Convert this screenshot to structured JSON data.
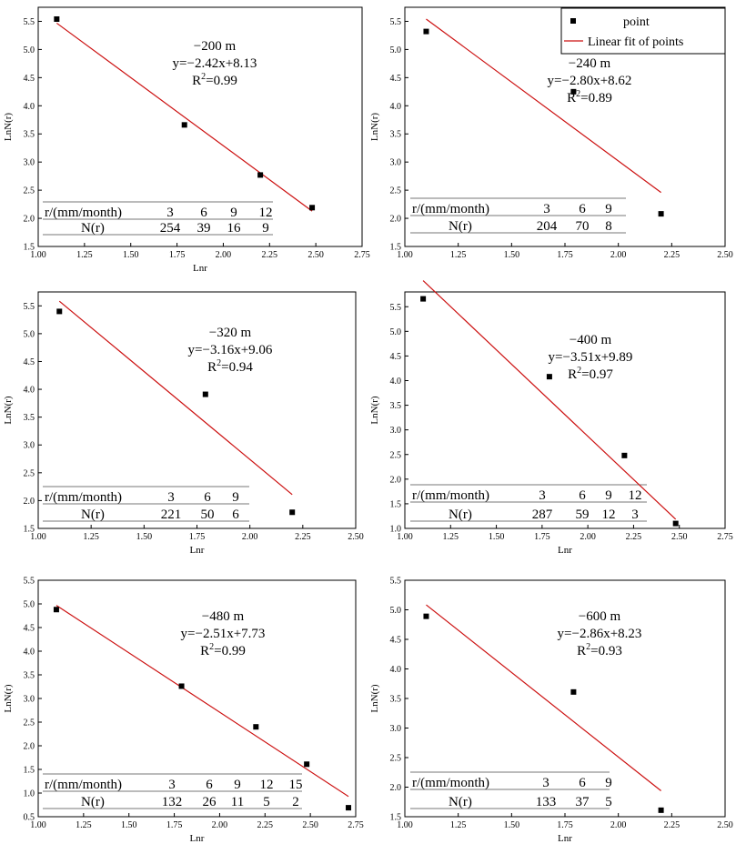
{
  "chart_data": [
    {
      "type": "scatter",
      "annotation": {
        "depth": "−200 m",
        "equation": "y=−2.42x+8.13",
        "r2_prefix": "R",
        "r2_sup": "2",
        "r2_value": "=0.99"
      },
      "xlabel": "Lnr",
      "ylabel": "LnN(r)",
      "xlim": [
        1.0,
        2.75
      ],
      "ylim": [
        1.5,
        5.75
      ],
      "xticks": [
        "1.00",
        "1.25",
        "1.50",
        "1.75",
        "2.00",
        "2.25",
        "2.50",
        "2.75"
      ],
      "yticks": [
        "1.5",
        "2.0",
        "2.5",
        "3.0",
        "3.5",
        "4.0",
        "4.5",
        "5.0",
        "5.5"
      ],
      "points": [
        [
          1.1,
          5.54
        ],
        [
          1.79,
          3.66
        ],
        [
          2.2,
          2.77
        ],
        [
          2.48,
          2.19
        ]
      ],
      "fit": {
        "slope": -2.42,
        "intercept": 8.13,
        "x": [
          1.1,
          2.48
        ]
      },
      "table": {
        "r_label": "r/(mm/month)",
        "r_values": [
          "3",
          "6",
          "9",
          "12"
        ],
        "n_label": "N(r)",
        "n_values": [
          "254",
          "39",
          "16",
          "9"
        ]
      }
    },
    {
      "type": "scatter",
      "annotation": {
        "depth": "−240 m",
        "equation": "y=−2.80x+8.62",
        "r2_prefix": "R",
        "r2_sup": "2",
        "r2_value": "=0.89"
      },
      "xlabel": "",
      "ylabel": "LnN(r)",
      "xlim": [
        1.0,
        2.5
      ],
      "ylim": [
        1.5,
        5.75
      ],
      "xticks": [
        "1.00",
        "1.25",
        "1.50",
        "1.75",
        "2.00",
        "2.25",
        "2.50"
      ],
      "yticks": [
        "1.5",
        "2.0",
        "2.5",
        "3.0",
        "3.5",
        "4.0",
        "4.5",
        "5.0",
        "5.5"
      ],
      "points": [
        [
          1.1,
          5.32
        ],
        [
          1.79,
          4.25
        ],
        [
          2.2,
          2.08
        ]
      ],
      "fit": {
        "slope": -2.8,
        "intercept": 8.62,
        "x": [
          1.1,
          2.2
        ]
      },
      "legend": {
        "placement": "top-right",
        "point_label": "point",
        "line_label": "Linear fit of points"
      },
      "table": {
        "r_label": "r/(mm/month)",
        "r_values": [
          "3",
          "6",
          "9"
        ],
        "n_label": "N(r)",
        "n_values": [
          "204",
          "70",
          "8"
        ]
      }
    },
    {
      "type": "scatter",
      "annotation": {
        "depth": "−320 m",
        "equation": "y=−3.16x+9.06",
        "r2_prefix": "R",
        "r2_sup": "2",
        "r2_value": "=0.94"
      },
      "xlabel": "Lnr",
      "ylabel": "LnN(r)",
      "xlim": [
        1.0,
        2.5
      ],
      "ylim": [
        1.5,
        5.75
      ],
      "xticks": [
        "1.00",
        "1.25",
        "1.50",
        "1.75",
        "2.00",
        "2.25",
        "2.50"
      ],
      "yticks": [
        "1.5",
        "2.0",
        "2.5",
        "3.0",
        "3.5",
        "4.0",
        "4.5",
        "5.0",
        "5.5"
      ],
      "points": [
        [
          1.1,
          5.4
        ],
        [
          1.79,
          3.91
        ],
        [
          2.2,
          1.79
        ]
      ],
      "fit": {
        "slope": -3.16,
        "intercept": 9.06,
        "x": [
          1.1,
          2.2
        ]
      },
      "table": {
        "r_label": "r/(mm/month)",
        "r_values": [
          "3",
          "6",
          "9"
        ],
        "n_label": "N(r)",
        "n_values": [
          "221",
          "50",
          "6"
        ]
      }
    },
    {
      "type": "scatter",
      "annotation": {
        "depth": "−400 m",
        "equation": "y=−3.51x+9.89",
        "r2_prefix": "R",
        "r2_sup": "2",
        "r2_value": "=0.97"
      },
      "xlabel": "Lnr",
      "ylabel": "LnN(r)",
      "xlim": [
        1.0,
        2.75
      ],
      "ylim": [
        1.0,
        5.8
      ],
      "xticks": [
        "1.00",
        "1.25",
        "1.50",
        "1.75",
        "2.00",
        "2.25",
        "2.50",
        "2.75"
      ],
      "yticks": [
        "1.0",
        "1.5",
        "2.0",
        "2.5",
        "3.0",
        "3.5",
        "4.0",
        "4.5",
        "5.0",
        "5.5"
      ],
      "points": [
        [
          1.1,
          5.66
        ],
        [
          1.79,
          4.08
        ],
        [
          2.2,
          2.48
        ],
        [
          2.48,
          1.1
        ]
      ],
      "fit": {
        "slope": -3.51,
        "intercept": 9.89,
        "x": [
          1.1,
          2.48
        ]
      },
      "table": {
        "r_label": "r/(mm/month)",
        "r_values": [
          "3",
          "6",
          "9",
          "12"
        ],
        "n_label": "N(r)",
        "n_values": [
          "287",
          "59",
          "12",
          "3"
        ]
      }
    },
    {
      "type": "scatter",
      "annotation": {
        "depth": "−480 m",
        "equation": "y=−2.51x+7.73",
        "r2_prefix": "R",
        "r2_sup": "2",
        "r2_value": "=0.99"
      },
      "xlabel": "Lnr",
      "ylabel": "LnN(r)",
      "xlim": [
        1.0,
        2.75
      ],
      "ylim": [
        0.5,
        5.5
      ],
      "xticks": [
        "1.00",
        "1.25",
        "1.50",
        "1.75",
        "2.00",
        "2.25",
        "2.50",
        "2.75"
      ],
      "yticks": [
        "0.5",
        "1.0",
        "1.5",
        "2.0",
        "2.5",
        "3.0",
        "3.5",
        "4.0",
        "4.5",
        "5.0",
        "5.5"
      ],
      "points": [
        [
          1.1,
          4.88
        ],
        [
          1.79,
          3.26
        ],
        [
          2.2,
          2.4
        ],
        [
          2.48,
          1.61
        ],
        [
          2.71,
          0.69
        ]
      ],
      "fit": {
        "slope": -2.51,
        "intercept": 7.73,
        "x": [
          1.1,
          2.71
        ]
      },
      "table": {
        "r_label": "r/(mm/month)",
        "r_values": [
          "3",
          "6",
          "9",
          "12",
          "15"
        ],
        "n_label": "N(r)",
        "n_values": [
          "132",
          "26",
          "11",
          "5",
          "2"
        ]
      }
    },
    {
      "type": "scatter",
      "annotation": {
        "depth": "−600 m",
        "equation": "y=−2.86x+8.23",
        "r2_prefix": "R",
        "r2_sup": "2",
        "r2_value": "=0.93"
      },
      "xlabel": "Lnr",
      "ylabel": "LnN(r)",
      "xlim": [
        1.0,
        2.5
      ],
      "ylim": [
        1.5,
        5.5
      ],
      "xticks": [
        "1.00",
        "1.25",
        "1.50",
        "1.75",
        "2.00",
        "2.25",
        "2.50"
      ],
      "yticks": [
        "1.5",
        "2.0",
        "2.5",
        "3.0",
        "3.5",
        "4.0",
        "4.5",
        "5.0",
        "5.5"
      ],
      "points": [
        [
          1.1,
          4.89
        ],
        [
          1.79,
          3.61
        ],
        [
          2.2,
          1.61
        ]
      ],
      "fit": {
        "slope": -2.86,
        "intercept": 8.23,
        "x": [
          1.1,
          2.2
        ]
      },
      "table": {
        "r_label": "r/(mm/month)",
        "r_values": [
          "3",
          "6",
          "9"
        ],
        "n_label": "N(r)",
        "n_values": [
          "133",
          "37",
          "5"
        ]
      }
    }
  ],
  "colors": {
    "fit_line": "#cc1111",
    "points": "#000000",
    "axes": "#000000",
    "table_rule": "#777777"
  }
}
